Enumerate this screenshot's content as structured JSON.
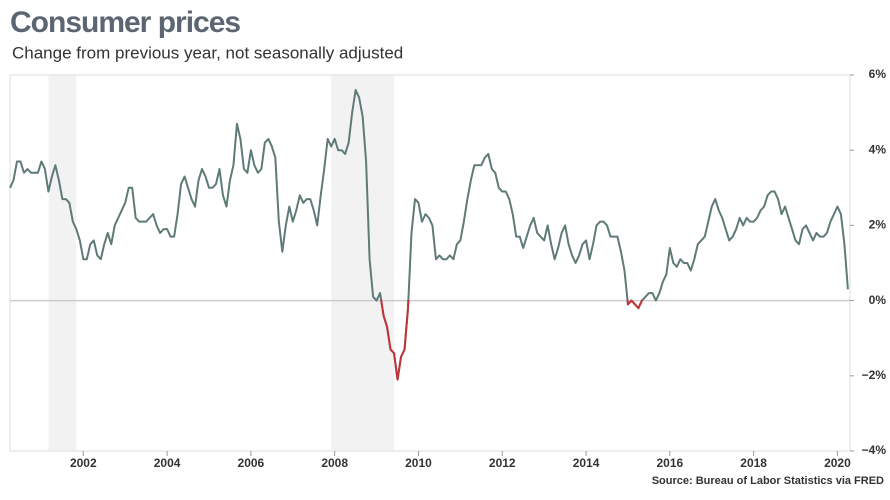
{
  "chart_data": {
    "type": "line",
    "title": "Consumer prices",
    "subtitle": "Change from previous year, not seasonally adjusted",
    "source": "Source: Bureau of Labor Statistics via FRED",
    "x": [
      2000.25,
      2000.333,
      2000.417,
      2000.5,
      2000.583,
      2000.667,
      2000.75,
      2000.833,
      2000.917,
      2001,
      2001.083,
      2001.167,
      2001.25,
      2001.333,
      2001.417,
      2001.5,
      2001.583,
      2001.667,
      2001.75,
      2001.833,
      2001.917,
      2002,
      2002.083,
      2002.167,
      2002.25,
      2002.333,
      2002.417,
      2002.5,
      2002.583,
      2002.667,
      2002.75,
      2002.833,
      2002.917,
      2003,
      2003.083,
      2003.167,
      2003.25,
      2003.333,
      2003.417,
      2003.5,
      2003.583,
      2003.667,
      2003.75,
      2003.833,
      2003.917,
      2004,
      2004.083,
      2004.167,
      2004.25,
      2004.333,
      2004.417,
      2004.5,
      2004.583,
      2004.667,
      2004.75,
      2004.833,
      2004.917,
      2005,
      2005.083,
      2005.167,
      2005.25,
      2005.333,
      2005.417,
      2005.5,
      2005.583,
      2005.667,
      2005.75,
      2005.833,
      2005.917,
      2006,
      2006.083,
      2006.167,
      2006.25,
      2006.333,
      2006.417,
      2006.5,
      2006.583,
      2006.667,
      2006.75,
      2006.833,
      2006.917,
      2007,
      2007.083,
      2007.167,
      2007.25,
      2007.333,
      2007.417,
      2007.5,
      2007.583,
      2007.667,
      2007.75,
      2007.833,
      2007.917,
      2008,
      2008.083,
      2008.167,
      2008.25,
      2008.333,
      2008.417,
      2008.5,
      2008.583,
      2008.667,
      2008.75,
      2008.833,
      2008.917,
      2009,
      2009.083,
      2009.167,
      2009.25,
      2009.333,
      2009.417,
      2009.5,
      2009.583,
      2009.667,
      2009.75,
      2009.833,
      2009.917,
      2010,
      2010.083,
      2010.167,
      2010.25,
      2010.333,
      2010.417,
      2010.5,
      2010.583,
      2010.667,
      2010.75,
      2010.833,
      2010.917,
      2011,
      2011.083,
      2011.167,
      2011.25,
      2011.333,
      2011.417,
      2011.5,
      2011.583,
      2011.667,
      2011.75,
      2011.833,
      2011.917,
      2012,
      2012.083,
      2012.167,
      2012.25,
      2012.333,
      2012.417,
      2012.5,
      2012.583,
      2012.667,
      2012.75,
      2012.833,
      2012.917,
      2013,
      2013.083,
      2013.167,
      2013.25,
      2013.333,
      2013.417,
      2013.5,
      2013.583,
      2013.667,
      2013.75,
      2013.833,
      2013.917,
      2014,
      2014.083,
      2014.167,
      2014.25,
      2014.333,
      2014.417,
      2014.5,
      2014.583,
      2014.667,
      2014.75,
      2014.833,
      2014.917,
      2015,
      2015.083,
      2015.167,
      2015.25,
      2015.333,
      2015.417,
      2015.5,
      2015.583,
      2015.667,
      2015.75,
      2015.833,
      2015.917,
      2016,
      2016.083,
      2016.167,
      2016.25,
      2016.333,
      2016.417,
      2016.5,
      2016.583,
      2016.667,
      2016.75,
      2016.833,
      2016.917,
      2017,
      2017.083,
      2017.167,
      2017.25,
      2017.333,
      2017.417,
      2017.5,
      2017.583,
      2017.667,
      2017.75,
      2017.833,
      2017.917,
      2018,
      2018.083,
      2018.167,
      2018.25,
      2018.333,
      2018.417,
      2018.5,
      2018.583,
      2018.667,
      2018.75,
      2018.833,
      2018.917,
      2019,
      2019.083,
      2019.167,
      2019.25,
      2019.333,
      2019.417,
      2019.5,
      2019.583,
      2019.667,
      2019.75,
      2019.833,
      2019.917,
      2020,
      2020.083,
      2020.167,
      2020.25
    ],
    "series": [
      {
        "color": "#5e7b78",
        "negative_color": "#c0353a",
        "values": [
          3.0,
          3.2,
          3.7,
          3.7,
          3.4,
          3.5,
          3.4,
          3.4,
          3.4,
          3.7,
          3.5,
          2.9,
          3.3,
          3.6,
          3.2,
          2.7,
          2.7,
          2.6,
          2.1,
          1.9,
          1.6,
          1.1,
          1.1,
          1.5,
          1.6,
          1.2,
          1.1,
          1.5,
          1.8,
          1.5,
          2.0,
          2.2,
          2.4,
          2.6,
          3.0,
          3.0,
          2.2,
          2.1,
          2.1,
          2.1,
          2.2,
          2.3,
          2.0,
          1.8,
          1.9,
          1.9,
          1.7,
          1.7,
          2.3,
          3.1,
          3.3,
          3.0,
          2.7,
          2.5,
          3.2,
          3.5,
          3.3,
          3.0,
          3.0,
          3.1,
          3.5,
          2.8,
          2.5,
          3.2,
          3.6,
          4.7,
          4.3,
          3.5,
          3.4,
          4.0,
          3.6,
          3.4,
          3.5,
          4.2,
          4.3,
          4.1,
          3.8,
          2.1,
          1.3,
          2.0,
          2.5,
          2.1,
          2.4,
          2.8,
          2.6,
          2.7,
          2.7,
          2.4,
          2.0,
          2.8,
          3.5,
          4.3,
          4.1,
          4.3,
          4.0,
          4.0,
          3.9,
          4.2,
          5.0,
          5.6,
          5.4,
          4.9,
          3.7,
          1.1,
          0.1,
          0.0,
          0.2,
          -0.4,
          -0.7,
          -1.3,
          -1.4,
          -2.1,
          -1.5,
          -1.3,
          -0.2,
          1.8,
          2.7,
          2.6,
          2.1,
          2.3,
          2.2,
          2.0,
          1.1,
          1.2,
          1.1,
          1.1,
          1.2,
          1.1,
          1.5,
          1.6,
          2.1,
          2.7,
          3.2,
          3.6,
          3.6,
          3.6,
          3.8,
          3.9,
          3.5,
          3.4,
          3.0,
          2.9,
          2.9,
          2.7,
          2.3,
          1.7,
          1.7,
          1.4,
          1.7,
          2.0,
          2.2,
          1.8,
          1.7,
          1.6,
          2.0,
          1.5,
          1.1,
          1.4,
          1.8,
          2.0,
          1.5,
          1.2,
          1.0,
          1.2,
          1.5,
          1.6,
          1.1,
          1.5,
          2.0,
          2.1,
          2.1,
          2.0,
          1.7,
          1.7,
          1.7,
          1.3,
          0.8,
          -0.1,
          0.0,
          -0.1,
          -0.2,
          0.0,
          0.1,
          0.2,
          0.2,
          0.0,
          0.2,
          0.5,
          0.7,
          1.4,
          1.0,
          0.9,
          1.1,
          1.0,
          1.0,
          0.8,
          1.1,
          1.5,
          1.6,
          1.7,
          2.1,
          2.5,
          2.7,
          2.4,
          2.2,
          1.9,
          1.6,
          1.7,
          1.9,
          2.2,
          2.0,
          2.2,
          2.1,
          2.1,
          2.2,
          2.4,
          2.5,
          2.8,
          2.9,
          2.9,
          2.7,
          2.3,
          2.5,
          2.2,
          1.9,
          1.6,
          1.5,
          1.9,
          2.0,
          1.8,
          1.6,
          1.8,
          1.7,
          1.7,
          1.8,
          2.1,
          2.3,
          2.5,
          2.3,
          1.5,
          0.3
        ]
      }
    ],
    "xlim": [
      2000.25,
      2020.3
    ],
    "xticks": [
      2002,
      2004,
      2006,
      2008,
      2010,
      2012,
      2014,
      2016,
      2018,
      2020
    ],
    "ylim": [
      -4,
      6
    ],
    "yticks": [
      {
        "value": 6,
        "label": "6%"
      },
      {
        "value": 4,
        "label": "4%"
      },
      {
        "value": 2,
        "label": "2%"
      },
      {
        "value": 0,
        "label": "0%"
      },
      {
        "value": -2,
        "label": "−2%"
      },
      {
        "value": -4,
        "label": "−4%"
      }
    ],
    "shaded_periods": [
      [
        2001.17,
        2001.83
      ],
      [
        2007.92,
        2009.42
      ]
    ],
    "shade_color": "#f2f2f2",
    "zero_line": true
  }
}
